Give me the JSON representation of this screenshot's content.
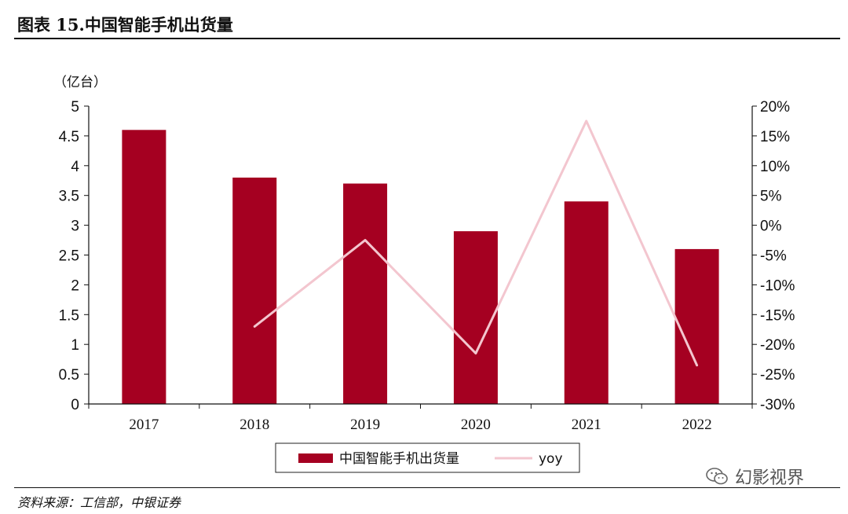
{
  "header": {
    "title": "图表 15.中国智能手机出货量"
  },
  "footer": {
    "source": "资料来源：工信部，中银证券"
  },
  "watermark": {
    "text": "幻影视界"
  },
  "chart_data": {
    "type": "bar",
    "categories": [
      "2017",
      "2018",
      "2019",
      "2020",
      "2021",
      "2022"
    ],
    "series": [
      {
        "name": "中国智能手机出货量",
        "type": "bar",
        "axis": "left",
        "color": "#a50021",
        "values": [
          4.6,
          3.8,
          3.7,
          2.9,
          3.4,
          2.6
        ]
      },
      {
        "name": "yoy",
        "type": "line",
        "axis": "right",
        "color": "#f3c6cf",
        "values": [
          null,
          -17,
          -2.5,
          -21.5,
          17.5,
          -23.5
        ]
      }
    ],
    "ylabel": "（亿台）",
    "ylim": [
      0,
      5
    ],
    "yticks": [
      "0",
      "0.5",
      "1",
      "1.5",
      "2",
      "2.5",
      "3",
      "3.5",
      "4",
      "4.5",
      "5"
    ],
    "y2lim": [
      -30,
      20
    ],
    "y2ticks": [
      "-30%",
      "-25%",
      "-20%",
      "-15%",
      "-10%",
      "-5%",
      "0%",
      "5%",
      "10%",
      "15%",
      "20%"
    ],
    "legend_position": "bottom",
    "grid": false
  }
}
